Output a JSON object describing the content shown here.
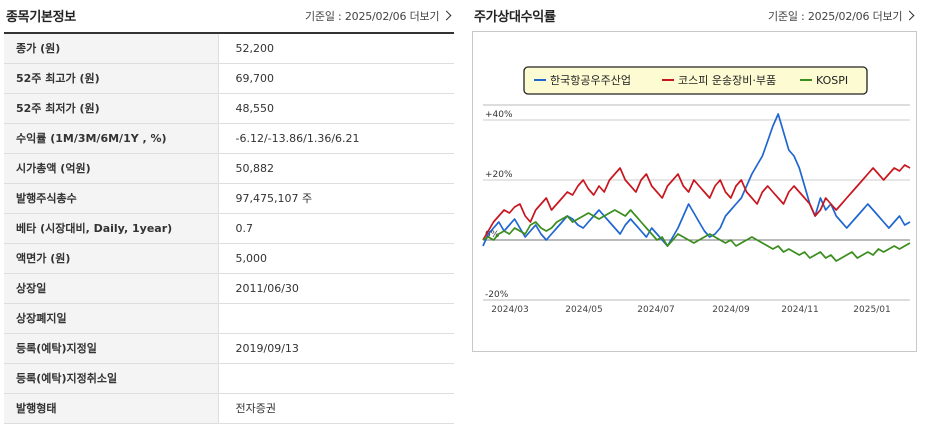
{
  "left": {
    "title": "종목기본정보",
    "date_label": "기준일 : 2025/02/06",
    "more_label": "더보기",
    "rows": [
      {
        "label": "종가 (원)",
        "value": "52,200"
      },
      {
        "label": "52주 최고가 (원)",
        "value": "69,700"
      },
      {
        "label": "52주 최저가 (원)",
        "value": "48,550"
      },
      {
        "label": "수익률 (1M/3M/6M/1Y , %)",
        "value": "-6.12/-13.86/1.36/6.21"
      },
      {
        "label": "시가총액 (억원)",
        "value": "50,882"
      },
      {
        "label": "발행주식총수",
        "value": "97,475,107 주"
      },
      {
        "label": "베타 (시장대비, Daily, 1year)",
        "value": "0.7"
      },
      {
        "label": "액면가 (원)",
        "value": "5,000"
      },
      {
        "label": "상장일",
        "value": "2011/06/30"
      },
      {
        "label": "상장폐지일",
        "value": ""
      },
      {
        "label": "등록(예탁)지정일",
        "value": "2019/09/13"
      },
      {
        "label": "등록(예탁)지정취소일",
        "value": ""
      },
      {
        "label": "발행형태",
        "value": "전자증권"
      }
    ]
  },
  "right": {
    "title": "주가상대수익률",
    "date_label": "기준일 : 2025/02/06",
    "more_label": "더보기"
  },
  "chart_data": {
    "type": "line",
    "y_ticks": [
      "+40%",
      "+20%",
      "0%",
      "-20%"
    ],
    "y_tick_values": [
      40,
      20,
      0,
      -20
    ],
    "x_ticks": [
      "2024/03",
      "2024/05",
      "2024/07",
      "2024/09",
      "2024/11",
      "2025/01"
    ],
    "ylim": [
      -20,
      45
    ],
    "grid": true,
    "legend_position": "top",
    "series": [
      {
        "name": "한국항공우주산업",
        "color": "#1f66d1",
        "values": [
          -2,
          2,
          4,
          6,
          3,
          5,
          7,
          4,
          1,
          3,
          5,
          2,
          0,
          2,
          4,
          6,
          8,
          7,
          5,
          4,
          6,
          8,
          10,
          8,
          6,
          4,
          2,
          5,
          7,
          5,
          3,
          1,
          4,
          2,
          0,
          -2,
          1,
          4,
          8,
          12,
          9,
          6,
          3,
          1,
          2,
          4,
          8,
          10,
          12,
          14,
          18,
          22,
          25,
          28,
          33,
          38,
          42,
          36,
          30,
          28,
          24,
          18,
          12,
          8,
          14,
          10,
          12,
          8,
          6,
          4,
          6,
          8,
          10,
          12,
          10,
          8,
          6,
          4,
          6,
          8,
          5,
          6
        ]
      },
      {
        "name": "코스피 운송장비·부품",
        "color": "#c9151e",
        "values": [
          0,
          3,
          6,
          8,
          10,
          9,
          11,
          12,
          8,
          6,
          10,
          12,
          14,
          10,
          12,
          14,
          16,
          15,
          18,
          20,
          17,
          15,
          18,
          16,
          20,
          22,
          24,
          20,
          18,
          16,
          20,
          22,
          18,
          16,
          14,
          18,
          20,
          22,
          18,
          16,
          20,
          18,
          16,
          14,
          18,
          20,
          16,
          14,
          18,
          20,
          16,
          14,
          12,
          16,
          18,
          16,
          14,
          12,
          16,
          18,
          16,
          14,
          12,
          8,
          10,
          14,
          12,
          10,
          12,
          14,
          16,
          18,
          20,
          22,
          24,
          22,
          20,
          22,
          24,
          23,
          25,
          24
        ]
      },
      {
        "name": "KOSPI",
        "color": "#3b8d1d",
        "values": [
          0,
          1,
          0,
          2,
          3,
          2,
          4,
          3,
          2,
          5,
          6,
          4,
          3,
          4,
          6,
          7,
          8,
          6,
          7,
          8,
          9,
          8,
          7,
          8,
          9,
          10,
          9,
          8,
          10,
          8,
          6,
          4,
          2,
          0,
          1,
          -2,
          0,
          2,
          1,
          0,
          -1,
          0,
          1,
          2,
          1,
          0,
          -1,
          0,
          -2,
          -1,
          0,
          1,
          0,
          -1,
          -2,
          -3,
          -2,
          -4,
          -3,
          -4,
          -5,
          -4,
          -6,
          -5,
          -4,
          -6,
          -5,
          -7,
          -6,
          -5,
          -4,
          -6,
          -5,
          -4,
          -5,
          -3,
          -4,
          -3,
          -2,
          -3,
          -2,
          -1
        ]
      }
    ]
  }
}
